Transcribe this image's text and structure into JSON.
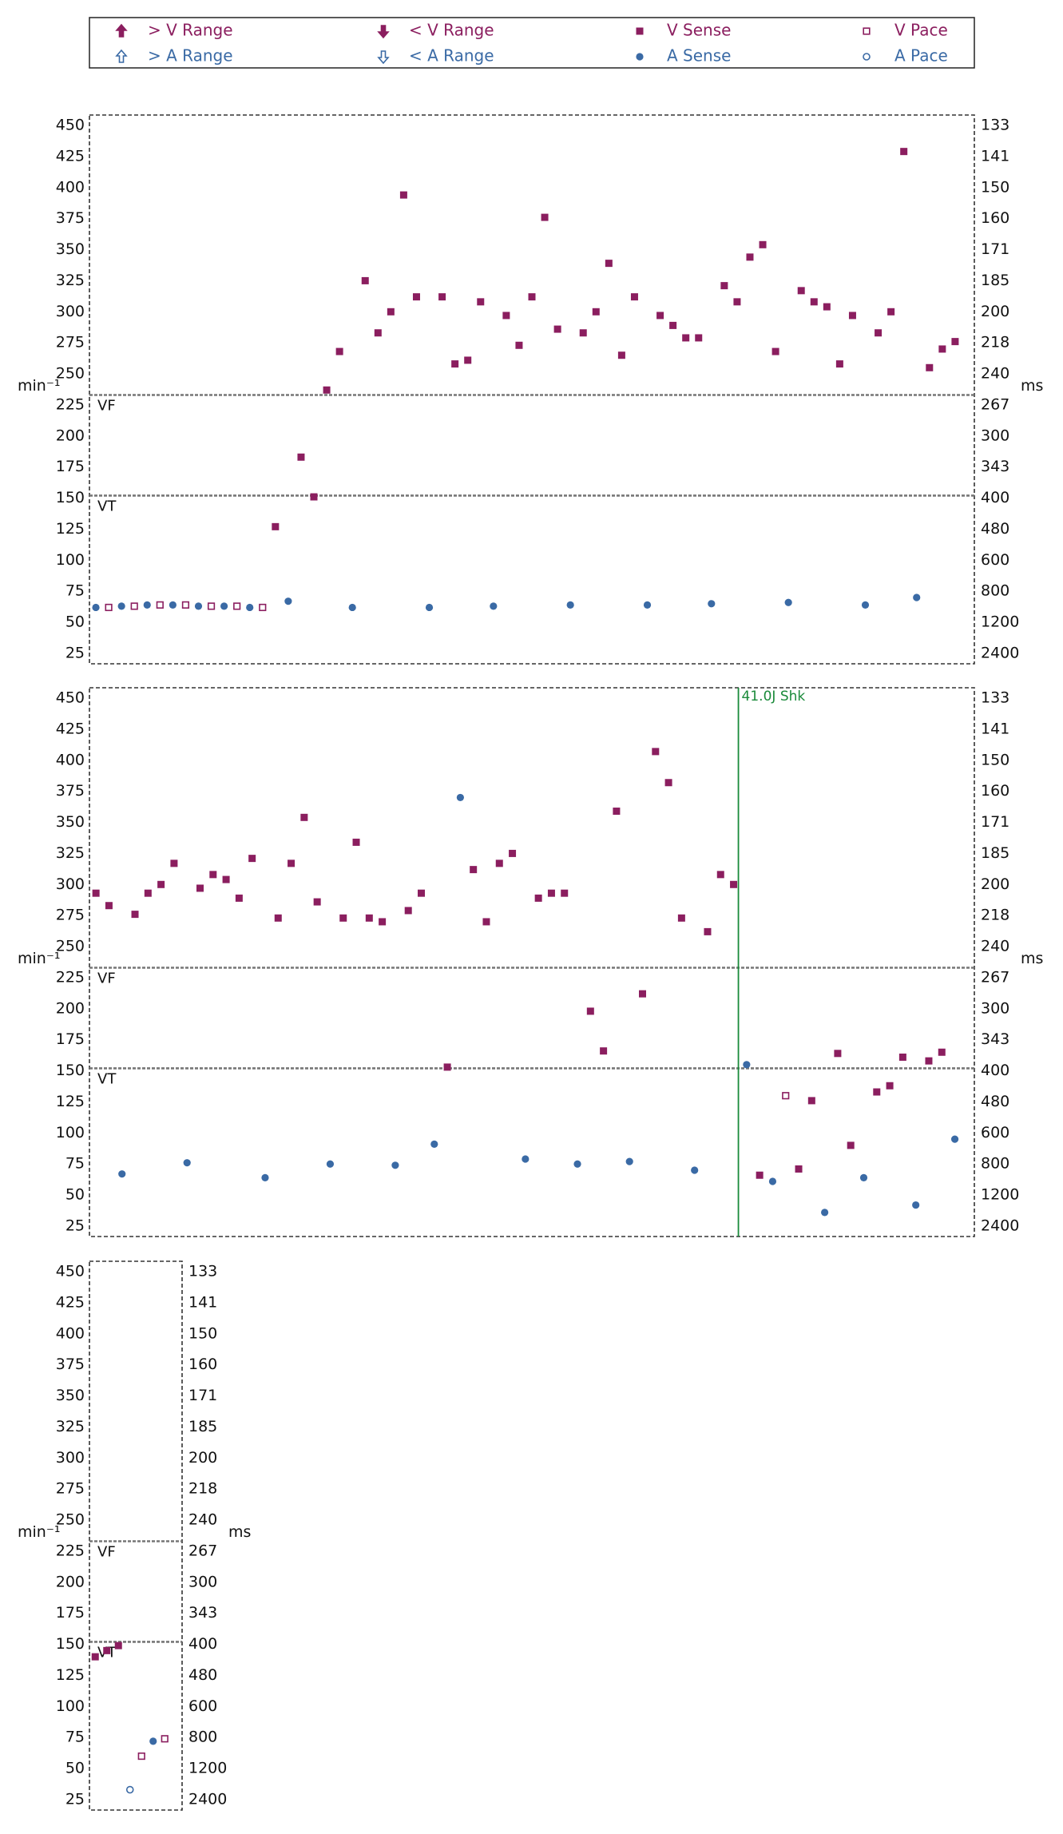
{
  "colors": {
    "ventricular": "#8b1e5f",
    "atrial": "#3a6aa5",
    "shock": "#1a8a3a",
    "frame": "#333333",
    "zone_line": "#777777"
  },
  "legend": {
    "entries": [
      {
        "label": "> V Range",
        "icon": "filled-up-arrow",
        "chamber": "ventricular"
      },
      {
        "label": "< V Range",
        "icon": "filled-down-arrow",
        "chamber": "ventricular"
      },
      {
        "label": "V Sense",
        "icon": "filled-square",
        "chamber": "ventricular"
      },
      {
        "label": "V Pace",
        "icon": "hollow-square",
        "chamber": "ventricular"
      },
      {
        "label": "> A Range",
        "icon": "hollow-up-arrow",
        "chamber": "atrial"
      },
      {
        "label": "< A Range",
        "icon": "hollow-down-arrow",
        "chamber": "atrial"
      },
      {
        "label": "A Sense",
        "icon": "filled-circle",
        "chamber": "atrial"
      },
      {
        "label": "A Pace",
        "icon": "hollow-circle",
        "chamber": "atrial"
      }
    ]
  },
  "axes": {
    "left_unit": "min⁻¹",
    "right_unit": "ms",
    "left_ticks": [
      "450",
      "425",
      "400",
      "375",
      "350",
      "325",
      "300",
      "275",
      "250",
      "225",
      "200",
      "175",
      "150",
      "125",
      "100",
      "75",
      "50",
      "25"
    ],
    "right_ticks": [
      "133",
      "141",
      "150",
      "160",
      "171",
      "185",
      "200",
      "218",
      "240",
      "267",
      "300",
      "343",
      "400",
      "480",
      "600",
      "800",
      "1200",
      "2400"
    ],
    "zone_labels": {
      "vf": "VF",
      "vt": "VT"
    }
  },
  "chart_data": [
    {
      "type": "scatter",
      "ylim": [
        25,
        450
      ],
      "zones": {
        "VF": 233,
        "VT": 152
      },
      "beats": [
        {
          "t": 1,
          "y": 62,
          "kind": "a_sense"
        },
        {
          "t": 2,
          "y": 62,
          "kind": "v_pace"
        },
        {
          "t": 3,
          "y": 63,
          "kind": "a_sense"
        },
        {
          "t": 4,
          "y": 63,
          "kind": "v_pace"
        },
        {
          "t": 5,
          "y": 64,
          "kind": "a_sense"
        },
        {
          "t": 6,
          "y": 64,
          "kind": "v_pace"
        },
        {
          "t": 7,
          "y": 64,
          "kind": "a_sense"
        },
        {
          "t": 8,
          "y": 64,
          "kind": "v_pace"
        },
        {
          "t": 9,
          "y": 63,
          "kind": "a_sense"
        },
        {
          "t": 10,
          "y": 63,
          "kind": "v_pace"
        },
        {
          "t": 11,
          "y": 63,
          "kind": "a_sense"
        },
        {
          "t": 12,
          "y": 63,
          "kind": "v_pace"
        },
        {
          "t": 13,
          "y": 62,
          "kind": "a_sense"
        },
        {
          "t": 14,
          "y": 62,
          "kind": "v_pace"
        },
        {
          "t": 15,
          "y": 127,
          "kind": "v_sense"
        },
        {
          "t": 16,
          "y": 67,
          "kind": "a_sense"
        },
        {
          "t": 17,
          "y": 183,
          "kind": "v_sense"
        },
        {
          "t": 18,
          "y": 151,
          "kind": "v_sense"
        },
        {
          "t": 19,
          "y": 237,
          "kind": "v_sense"
        },
        {
          "t": 20,
          "y": 268,
          "kind": "v_sense"
        },
        {
          "t": 21,
          "y": 62,
          "kind": "a_sense"
        },
        {
          "t": 22,
          "y": 325,
          "kind": "v_sense"
        },
        {
          "t": 23,
          "y": 283,
          "kind": "v_sense"
        },
        {
          "t": 24,
          "y": 300,
          "kind": "v_sense"
        },
        {
          "t": 25,
          "y": 394,
          "kind": "v_sense"
        },
        {
          "t": 26,
          "y": 312,
          "kind": "v_sense"
        },
        {
          "t": 27,
          "y": 62,
          "kind": "a_sense"
        },
        {
          "t": 28,
          "y": 312,
          "kind": "v_sense"
        },
        {
          "t": 29,
          "y": 258,
          "kind": "v_sense"
        },
        {
          "t": 30,
          "y": 261,
          "kind": "v_sense"
        },
        {
          "t": 31,
          "y": 308,
          "kind": "v_sense"
        },
        {
          "t": 32,
          "y": 63,
          "kind": "a_sense"
        },
        {
          "t": 33,
          "y": 297,
          "kind": "v_sense"
        },
        {
          "t": 34,
          "y": 273,
          "kind": "v_sense"
        },
        {
          "t": 35,
          "y": 312,
          "kind": "v_sense"
        },
        {
          "t": 36,
          "y": 376,
          "kind": "v_sense"
        },
        {
          "t": 37,
          "y": 286,
          "kind": "v_sense"
        },
        {
          "t": 38,
          "y": 64,
          "kind": "a_sense"
        },
        {
          "t": 39,
          "y": 283,
          "kind": "v_sense"
        },
        {
          "t": 40,
          "y": 300,
          "kind": "v_sense"
        },
        {
          "t": 41,
          "y": 339,
          "kind": "v_sense"
        },
        {
          "t": 42,
          "y": 265,
          "kind": "v_sense"
        },
        {
          "t": 43,
          "y": 312,
          "kind": "v_sense"
        },
        {
          "t": 44,
          "y": 64,
          "kind": "a_sense"
        },
        {
          "t": 45,
          "y": 297,
          "kind": "v_sense"
        },
        {
          "t": 46,
          "y": 289,
          "kind": "v_sense"
        },
        {
          "t": 47,
          "y": 279,
          "kind": "v_sense"
        },
        {
          "t": 48,
          "y": 279,
          "kind": "v_sense"
        },
        {
          "t": 49,
          "y": 65,
          "kind": "a_sense"
        },
        {
          "t": 50,
          "y": 321,
          "kind": "v_sense"
        },
        {
          "t": 51,
          "y": 308,
          "kind": "v_sense"
        },
        {
          "t": 52,
          "y": 344,
          "kind": "v_sense"
        },
        {
          "t": 53,
          "y": 354,
          "kind": "v_sense"
        },
        {
          "t": 54,
          "y": 268,
          "kind": "v_sense"
        },
        {
          "t": 55,
          "y": 66,
          "kind": "a_sense"
        },
        {
          "t": 56,
          "y": 317,
          "kind": "v_sense"
        },
        {
          "t": 57,
          "y": 308,
          "kind": "v_sense"
        },
        {
          "t": 58,
          "y": 304,
          "kind": "v_sense"
        },
        {
          "t": 59,
          "y": 258,
          "kind": "v_sense"
        },
        {
          "t": 60,
          "y": 297,
          "kind": "v_sense"
        },
        {
          "t": 61,
          "y": 64,
          "kind": "a_sense"
        },
        {
          "t": 62,
          "y": 283,
          "kind": "v_sense"
        },
        {
          "t": 63,
          "y": 300,
          "kind": "v_sense"
        },
        {
          "t": 64,
          "y": 429,
          "kind": "v_sense"
        },
        {
          "t": 65,
          "y": 70,
          "kind": "a_sense"
        },
        {
          "t": 66,
          "y": 255,
          "kind": "v_sense"
        },
        {
          "t": 67,
          "y": 270,
          "kind": "v_sense"
        },
        {
          "t": 68,
          "y": 276,
          "kind": "v_sense"
        }
      ]
    },
    {
      "type": "scatter",
      "ylim": [
        25,
        450
      ],
      "zones": {
        "VF": 233,
        "VT": 152
      },
      "shock": {
        "t": 50,
        "label": "41.0J Shk"
      },
      "beats": [
        {
          "t": 1,
          "y": 293,
          "kind": "v_sense"
        },
        {
          "t": 2,
          "y": 283,
          "kind": "v_sense"
        },
        {
          "t": 3,
          "y": 67,
          "kind": "a_sense"
        },
        {
          "t": 4,
          "y": 276,
          "kind": "v_sense"
        },
        {
          "t": 5,
          "y": 293,
          "kind": "v_sense"
        },
        {
          "t": 6,
          "y": 300,
          "kind": "v_sense"
        },
        {
          "t": 7,
          "y": 317,
          "kind": "v_sense"
        },
        {
          "t": 8,
          "y": 76,
          "kind": "a_sense"
        },
        {
          "t": 9,
          "y": 297,
          "kind": "v_sense"
        },
        {
          "t": 10,
          "y": 308,
          "kind": "v_sense"
        },
        {
          "t": 11,
          "y": 304,
          "kind": "v_sense"
        },
        {
          "t": 12,
          "y": 289,
          "kind": "v_sense"
        },
        {
          "t": 13,
          "y": 321,
          "kind": "v_sense"
        },
        {
          "t": 14,
          "y": 64,
          "kind": "a_sense"
        },
        {
          "t": 15,
          "y": 273,
          "kind": "v_sense"
        },
        {
          "t": 16,
          "y": 317,
          "kind": "v_sense"
        },
        {
          "t": 17,
          "y": 354,
          "kind": "v_sense"
        },
        {
          "t": 18,
          "y": 286,
          "kind": "v_sense"
        },
        {
          "t": 19,
          "y": 75,
          "kind": "a_sense"
        },
        {
          "t": 20,
          "y": 273,
          "kind": "v_sense"
        },
        {
          "t": 21,
          "y": 334,
          "kind": "v_sense"
        },
        {
          "t": 22,
          "y": 273,
          "kind": "v_sense"
        },
        {
          "t": 23,
          "y": 270,
          "kind": "v_sense"
        },
        {
          "t": 24,
          "y": 74,
          "kind": "a_sense"
        },
        {
          "t": 25,
          "y": 279,
          "kind": "v_sense"
        },
        {
          "t": 26,
          "y": 293,
          "kind": "v_sense"
        },
        {
          "t": 27,
          "y": 91,
          "kind": "a_sense"
        },
        {
          "t": 28,
          "y": 153,
          "kind": "v_sense"
        },
        {
          "t": 29,
          "y": 370,
          "kind": "a_sense"
        },
        {
          "t": 30,
          "y": 312,
          "kind": "v_sense"
        },
        {
          "t": 31,
          "y": 270,
          "kind": "v_sense"
        },
        {
          "t": 32,
          "y": 317,
          "kind": "v_sense"
        },
        {
          "t": 33,
          "y": 325,
          "kind": "v_sense"
        },
        {
          "t": 34,
          "y": 79,
          "kind": "a_sense"
        },
        {
          "t": 35,
          "y": 289,
          "kind": "v_sense"
        },
        {
          "t": 36,
          "y": 293,
          "kind": "v_sense"
        },
        {
          "t": 37,
          "y": 293,
          "kind": "v_sense"
        },
        {
          "t": 38,
          "y": 75,
          "kind": "a_sense"
        },
        {
          "t": 39,
          "y": 198,
          "kind": "v_sense"
        },
        {
          "t": 40,
          "y": 166,
          "kind": "v_sense"
        },
        {
          "t": 41,
          "y": 359,
          "kind": "v_sense"
        },
        {
          "t": 42,
          "y": 77,
          "kind": "a_sense"
        },
        {
          "t": 43,
          "y": 212,
          "kind": "v_sense"
        },
        {
          "t": 44,
          "y": 407,
          "kind": "v_sense"
        },
        {
          "t": 45,
          "y": 382,
          "kind": "v_sense"
        },
        {
          "t": 46,
          "y": 273,
          "kind": "v_sense"
        },
        {
          "t": 47,
          "y": 70,
          "kind": "a_sense"
        },
        {
          "t": 48,
          "y": 262,
          "kind": "v_sense"
        },
        {
          "t": 49,
          "y": 308,
          "kind": "v_sense"
        },
        {
          "t": 50,
          "y": 300,
          "kind": "v_sense"
        },
        {
          "t": 51,
          "y": 155,
          "kind": "a_sense"
        },
        {
          "t": 52,
          "y": 66,
          "kind": "v_sense"
        },
        {
          "t": 53,
          "y": 61,
          "kind": "a_sense"
        },
        {
          "t": 54,
          "y": 130,
          "kind": "v_pace"
        },
        {
          "t": 55,
          "y": 71,
          "kind": "v_sense"
        },
        {
          "t": 56,
          "y": 126,
          "kind": "v_sense"
        },
        {
          "t": 57,
          "y": 36,
          "kind": "a_sense"
        },
        {
          "t": 58,
          "y": 164,
          "kind": "v_sense"
        },
        {
          "t": 59,
          "y": 90,
          "kind": "v_sense"
        },
        {
          "t": 60,
          "y": 64,
          "kind": "a_sense"
        },
        {
          "t": 61,
          "y": 133,
          "kind": "v_sense"
        },
        {
          "t": 62,
          "y": 138,
          "kind": "v_sense"
        },
        {
          "t": 63,
          "y": 161,
          "kind": "v_sense"
        },
        {
          "t": 64,
          "y": 42,
          "kind": "a_sense"
        },
        {
          "t": 65,
          "y": 158,
          "kind": "v_sense"
        },
        {
          "t": 66,
          "y": 165,
          "kind": "v_sense"
        },
        {
          "t": 67,
          "y": 95,
          "kind": "a_sense"
        }
      ]
    },
    {
      "type": "scatter",
      "ylim": [
        25,
        450
      ],
      "zones": {
        "VF": 233,
        "VT": 152
      },
      "beats": [
        {
          "t": 1,
          "y": 140,
          "kind": "v_sense"
        },
        {
          "t": 2,
          "y": 145,
          "kind": "v_sense"
        },
        {
          "t": 3,
          "y": 149,
          "kind": "v_sense"
        },
        {
          "t": 4,
          "y": 33,
          "kind": "a_pace"
        },
        {
          "t": 5,
          "y": 60,
          "kind": "v_pace"
        },
        {
          "t": 6,
          "y": 72,
          "kind": "a_sense"
        },
        {
          "t": 7,
          "y": 74,
          "kind": "v_pace"
        }
      ]
    }
  ]
}
